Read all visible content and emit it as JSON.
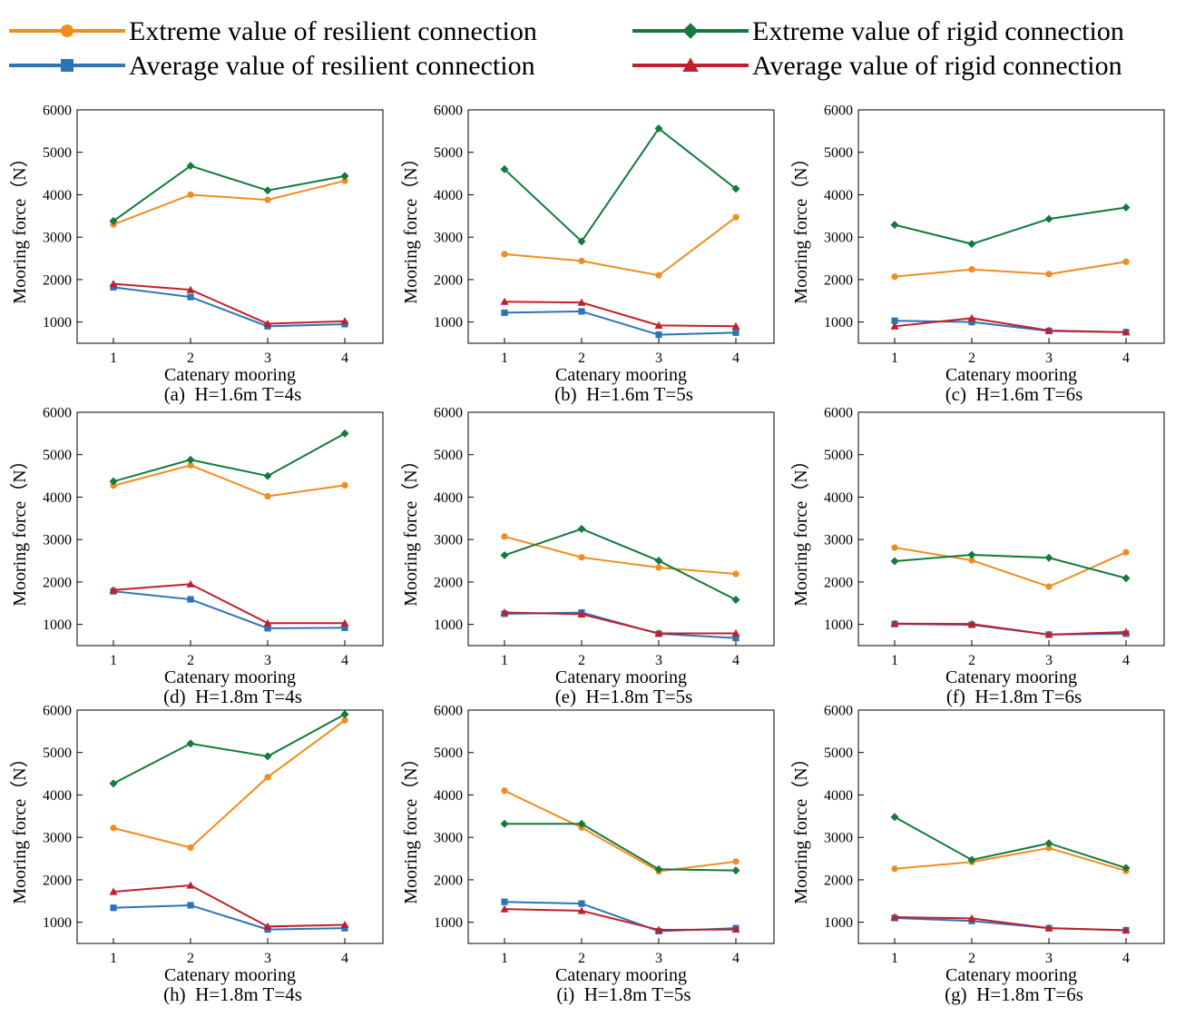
{
  "legend": [
    {
      "name": "Extreme value of resilient connection",
      "color": "#F28C1E",
      "marker": "circle"
    },
    {
      "name": "Extreme value of rigid connection",
      "color": "#127A3C",
      "marker": "diamond"
    },
    {
      "name": "Average value of resilient connection",
      "color": "#2B74B5",
      "marker": "square"
    },
    {
      "name": "Average value of rigid connection",
      "color": "#C0202E",
      "marker": "triangle"
    }
  ],
  "chart_data": [
    {
      "type": "line",
      "caption": "(a)  H=1.6m T=4s",
      "xlabel": "Catenary mooring",
      "ylabel": "Mooring force（N）",
      "x": [
        1,
        2,
        3,
        4
      ],
      "ylim": [
        500,
        6000
      ],
      "yticks": [
        1000,
        2000,
        3000,
        4000,
        5000,
        6000
      ],
      "series": [
        {
          "name": "Extreme value of resilient connection",
          "values": [
            3300,
            4000,
            3880,
            4330
          ]
        },
        {
          "name": "Extreme value of rigid connection",
          "values": [
            3380,
            4680,
            4100,
            4440
          ]
        },
        {
          "name": "Average value of resilient connection",
          "values": [
            1820,
            1590,
            900,
            950
          ]
        },
        {
          "name": "Average value of rigid connection",
          "values": [
            1900,
            1760,
            960,
            1020
          ]
        }
      ]
    },
    {
      "type": "line",
      "caption": "(b)  H=1.6m T=5s",
      "xlabel": "Catenary mooring",
      "ylabel": "Mooring force（N）",
      "x": [
        1,
        2,
        3,
        4
      ],
      "ylim": [
        500,
        6000
      ],
      "yticks": [
        1000,
        2000,
        3000,
        4000,
        5000,
        6000
      ],
      "series": [
        {
          "name": "Extreme value of resilient connection",
          "values": [
            2600,
            2440,
            2100,
            3470
          ]
        },
        {
          "name": "Extreme value of rigid connection",
          "values": [
            4600,
            2900,
            5560,
            4140
          ]
        },
        {
          "name": "Average value of resilient connection",
          "values": [
            1220,
            1250,
            700,
            750
          ]
        },
        {
          "name": "Average value of rigid connection",
          "values": [
            1480,
            1460,
            920,
            900
          ]
        }
      ]
    },
    {
      "type": "line",
      "caption": "(c)  H=1.6m T=6s",
      "xlabel": "Catenary mooring",
      "ylabel": "Mooring force（N）",
      "x": [
        1,
        2,
        3,
        4
      ],
      "ylim": [
        500,
        6000
      ],
      "yticks": [
        1000,
        2000,
        3000,
        4000,
        5000,
        6000
      ],
      "series": [
        {
          "name": "Extreme value of resilient connection",
          "values": [
            2070,
            2240,
            2130,
            2420
          ]
        },
        {
          "name": "Extreme value of rigid connection",
          "values": [
            3290,
            2840,
            3430,
            3700
          ]
        },
        {
          "name": "Average value of resilient connection",
          "values": [
            1030,
            1000,
            790,
            760
          ]
        },
        {
          "name": "Average value of rigid connection",
          "values": [
            900,
            1090,
            800,
            760
          ]
        }
      ]
    },
    {
      "type": "line",
      "caption": "(d)  H=1.8m T=4s",
      "xlabel": "Catenary mooring",
      "ylabel": "Mooring force（N）",
      "x": [
        1,
        2,
        3,
        4
      ],
      "ylim": [
        500,
        6000
      ],
      "yticks": [
        1000,
        2000,
        3000,
        4000,
        5000,
        6000
      ],
      "series": [
        {
          "name": "Extreme value of resilient connection",
          "values": [
            4270,
            4750,
            4020,
            4280
          ]
        },
        {
          "name": "Extreme value of rigid connection",
          "values": [
            4370,
            4880,
            4500,
            5500
          ]
        },
        {
          "name": "Average value of resilient connection",
          "values": [
            1780,
            1590,
            910,
            920
          ]
        },
        {
          "name": "Average value of rigid connection",
          "values": [
            1810,
            1950,
            1030,
            1030
          ]
        }
      ]
    },
    {
      "type": "line",
      "caption": "(e)  H=1.8m T=5s",
      "xlabel": "Catenary mooring",
      "ylabel": "Mooring force（N）",
      "x": [
        1,
        2,
        3,
        4
      ],
      "ylim": [
        500,
        6000
      ],
      "yticks": [
        1000,
        2000,
        3000,
        4000,
        5000,
        6000
      ],
      "series": [
        {
          "name": "Extreme value of resilient connection",
          "values": [
            3070,
            2580,
            2340,
            2190
          ]
        },
        {
          "name": "Extreme value of rigid connection",
          "values": [
            2630,
            3250,
            2500,
            1580
          ]
        },
        {
          "name": "Average value of resilient connection",
          "values": [
            1250,
            1280,
            780,
            680
          ]
        },
        {
          "name": "Average value of rigid connection",
          "values": [
            1280,
            1240,
            790,
            790
          ]
        }
      ]
    },
    {
      "type": "line",
      "caption": "(f)  H=1.8m T=6s",
      "xlabel": "Catenary mooring",
      "ylabel": "Mooring force（N）",
      "x": [
        1,
        2,
        3,
        4
      ],
      "ylim": [
        500,
        6000
      ],
      "yticks": [
        1000,
        2000,
        3000,
        4000,
        5000,
        6000
      ],
      "series": [
        {
          "name": "Extreme value of resilient connection",
          "values": [
            2810,
            2510,
            1890,
            2700
          ]
        },
        {
          "name": "Extreme value of rigid connection",
          "values": [
            2490,
            2640,
            2570,
            2090
          ]
        },
        {
          "name": "Average value of resilient connection",
          "values": [
            1010,
            990,
            760,
            780
          ]
        },
        {
          "name": "Average value of rigid connection",
          "values": [
            1020,
            1010,
            760,
            820
          ]
        }
      ]
    },
    {
      "type": "line",
      "caption": "(h)  H=1.8m T=4s",
      "xlabel": "Catenary mooring",
      "ylabel": "Mooring force（N）",
      "x": [
        1,
        2,
        3,
        4
      ],
      "ylim": [
        500,
        6000
      ],
      "yticks": [
        1000,
        2000,
        3000,
        4000,
        5000,
        6000
      ],
      "series": [
        {
          "name": "Extreme value of resilient connection",
          "values": [
            3220,
            2760,
            4420,
            5760
          ]
        },
        {
          "name": "Extreme value of rigid connection",
          "values": [
            4270,
            5210,
            4910,
            5900
          ]
        },
        {
          "name": "Average value of resilient connection",
          "values": [
            1340,
            1400,
            830,
            860
          ]
        },
        {
          "name": "Average value of rigid connection",
          "values": [
            1720,
            1870,
            900,
            940
          ]
        }
      ]
    },
    {
      "type": "line",
      "caption": "(i)  H=1.8m T=5s",
      "xlabel": "Catenary mooring",
      "ylabel": "Mooring force（N）",
      "x": [
        1,
        2,
        3,
        4
      ],
      "ylim": [
        500,
        6000
      ],
      "yticks": [
        1000,
        2000,
        3000,
        4000,
        5000,
        6000
      ],
      "series": [
        {
          "name": "Extreme value of resilient connection",
          "values": [
            4100,
            3230,
            2200,
            2430
          ]
        },
        {
          "name": "Extreme value of rigid connection",
          "values": [
            3320,
            3320,
            2250,
            2220
          ]
        },
        {
          "name": "Average value of resilient connection",
          "values": [
            1480,
            1440,
            790,
            860
          ]
        },
        {
          "name": "Average value of rigid connection",
          "values": [
            1310,
            1270,
            820,
            830
          ]
        }
      ]
    },
    {
      "type": "line",
      "caption": "(g)  H=1.8m T=6s",
      "xlabel": "Catenary mooring",
      "ylabel": "Mooring force（N）",
      "x": [
        1,
        2,
        3,
        4
      ],
      "ylim": [
        500,
        6000
      ],
      "yticks": [
        1000,
        2000,
        3000,
        4000,
        5000,
        6000
      ],
      "series": [
        {
          "name": "Extreme value of resilient connection",
          "values": [
            2260,
            2420,
            2750,
            2210
          ]
        },
        {
          "name": "Extreme value of rigid connection",
          "values": [
            3480,
            2470,
            2860,
            2280
          ]
        },
        {
          "name": "Average value of resilient connection",
          "values": [
            1100,
            1030,
            860,
            810
          ]
        },
        {
          "name": "Average value of rigid connection",
          "values": [
            1120,
            1090,
            860,
            810
          ]
        }
      ]
    }
  ]
}
